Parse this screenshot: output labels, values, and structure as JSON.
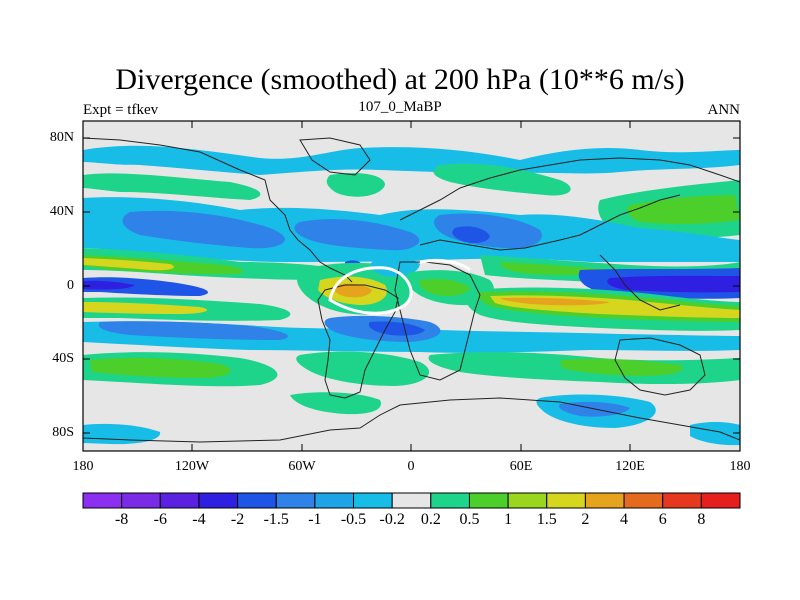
{
  "title": "Divergence (smoothed) at 200 hPa (10**6 m/s)",
  "subtitle_left": "Expt = tfkev",
  "subtitle_center": "107_0_MaBP",
  "subtitle_right": "ANN",
  "lat_ticks": [
    "80N",
    "40N",
    "0",
    "40S",
    "80S"
  ],
  "lon_ticks": [
    "180",
    "120W",
    "60W",
    "0",
    "60E",
    "120E",
    "180"
  ],
  "colorbar": {
    "colors": [
      "#8b2ff0",
      "#7a2be6",
      "#5a22e0",
      "#2f1fe0",
      "#1e55e6",
      "#2f82e8",
      "#1ea3e6",
      "#17bde6",
      "#e6e6e6",
      "#1ed48b",
      "#4ccf2b",
      "#9bd61e",
      "#d6d61e",
      "#e6a41e",
      "#e66a1e",
      "#e6381e",
      "#e61e1e"
    ],
    "labels": [
      "-8",
      "-6",
      "-4",
      "-2",
      "-1.5",
      "-1",
      "-0.5",
      "-0.2",
      "0.2",
      "0.5",
      "1",
      "1.5",
      "2",
      "4",
      "6",
      "8"
    ]
  },
  "map_data": {
    "background_value_range": [
      -0.2,
      0.2
    ],
    "note_levels": [
      -8,
      -6,
      -4,
      -2,
      -1.5,
      -1,
      -0.5,
      -0.2,
      0.2,
      0.5,
      1,
      1.5,
      2,
      4,
      6,
      8
    ]
  }
}
